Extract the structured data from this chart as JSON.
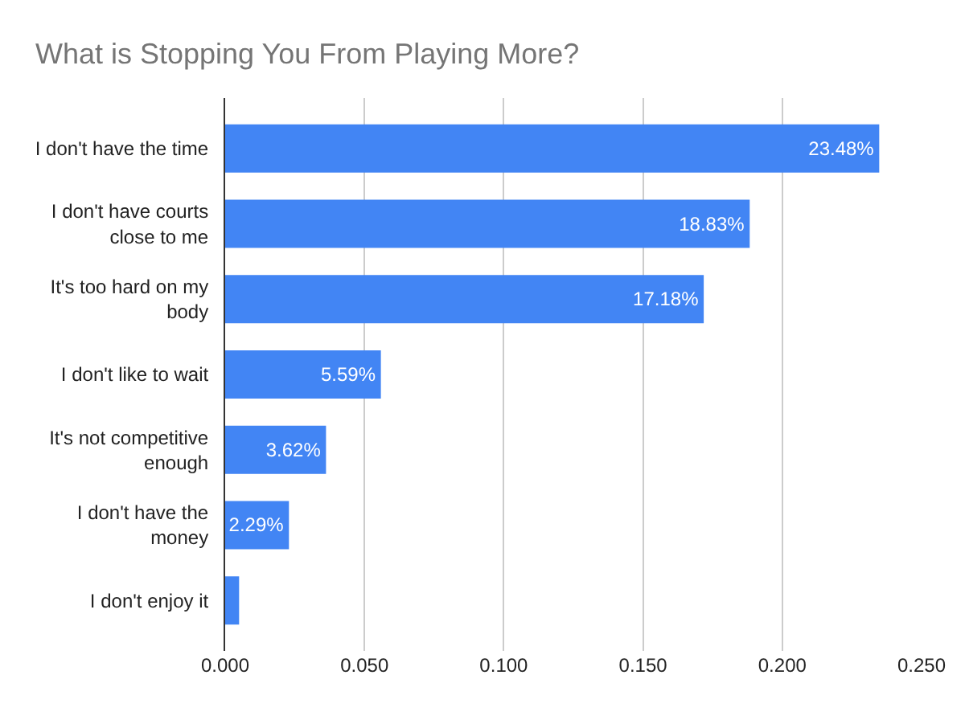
{
  "chart_data": {
    "type": "bar",
    "orientation": "horizontal",
    "title": "What is Stopping You From Playing More?",
    "categories": [
      "I don't have the time",
      "I don't have courts close to me",
      "It's too hard on my body",
      "I don't like to wait",
      "It's not competitive enough",
      "I don't have the money",
      "I don't enjoy it"
    ],
    "values": [
      0.2348,
      0.1883,
      0.1718,
      0.0559,
      0.0362,
      0.0229,
      0.005
    ],
    "value_labels": [
      "23.48%",
      "18.83%",
      "17.18%",
      "5.59%",
      "3.62%",
      "2.29%",
      null
    ],
    "color": "#4285f4",
    "xlim": [
      0,
      0.25
    ],
    "xticks": [
      {
        "value": 0,
        "label": "0.000"
      },
      {
        "value": 0.05,
        "label": "0.050"
      },
      {
        "value": 0.1,
        "label": "0.100"
      },
      {
        "value": 0.15,
        "label": "0.150"
      },
      {
        "value": 0.2,
        "label": "0.200"
      },
      {
        "value": 0.25,
        "label": "0.250"
      }
    ],
    "grid": "x",
    "legend": false
  }
}
